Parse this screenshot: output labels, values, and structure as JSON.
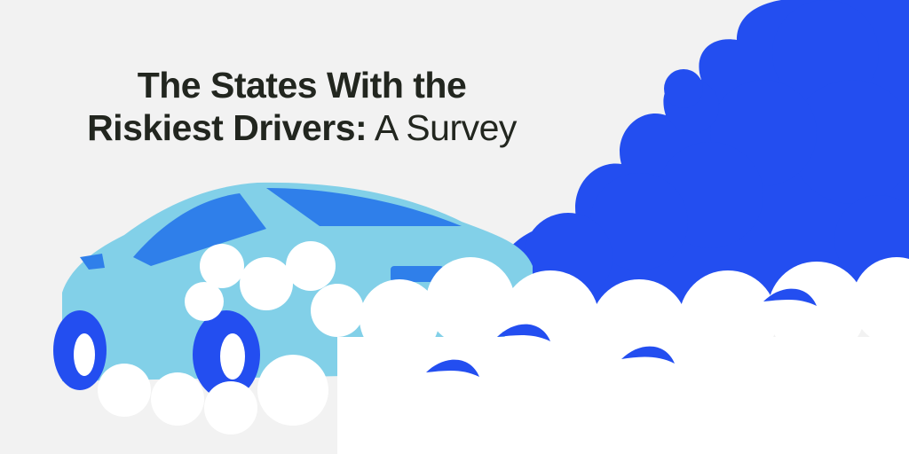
{
  "title": {
    "line1": "The States With the",
    "line2_bold": "Riskiest Drivers:",
    "line2_regular": "A Survey"
  },
  "colors": {
    "background": "#f2f2f2",
    "smoke_blue": "#234ef0",
    "car_body": "#82d0e8",
    "car_window": "#2f7fea",
    "smoke_white": "#ffffff",
    "title_text": "#22261f"
  },
  "illustration": {
    "subject": "car-with-tire-smoke"
  }
}
